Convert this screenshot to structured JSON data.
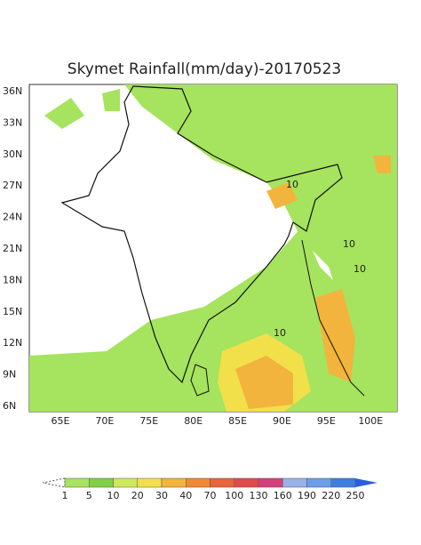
{
  "map": {
    "title": "Skymet Rainfall(mm/day)-20170523",
    "lat_labels": [
      "36N",
      "33N",
      "30N",
      "27N",
      "24N",
      "21N",
      "18N",
      "15N",
      "12N",
      "9N",
      "6N"
    ],
    "lon_labels": [
      "65E",
      "70E",
      "75E",
      "80E",
      "85E",
      "90E",
      "95E",
      "100E"
    ],
    "contour_labels": [
      "10",
      "10",
      "10",
      "10"
    ]
  },
  "legend": {
    "labels": [
      "1",
      "5",
      "10",
      "20",
      "30",
      "40",
      "70",
      "100",
      "130",
      "160",
      "190",
      "220",
      "250"
    ],
    "colors": [
      "#a6e35e",
      "#7fd048",
      "#cde85a",
      "#f1e04a",
      "#f2b43c",
      "#ee8a35",
      "#e8643a",
      "#e24a4a",
      "#d43f7a",
      "#9ab0e8",
      "#6a9ee8",
      "#3f7ee0",
      "#2a5fd8"
    ]
  }
}
